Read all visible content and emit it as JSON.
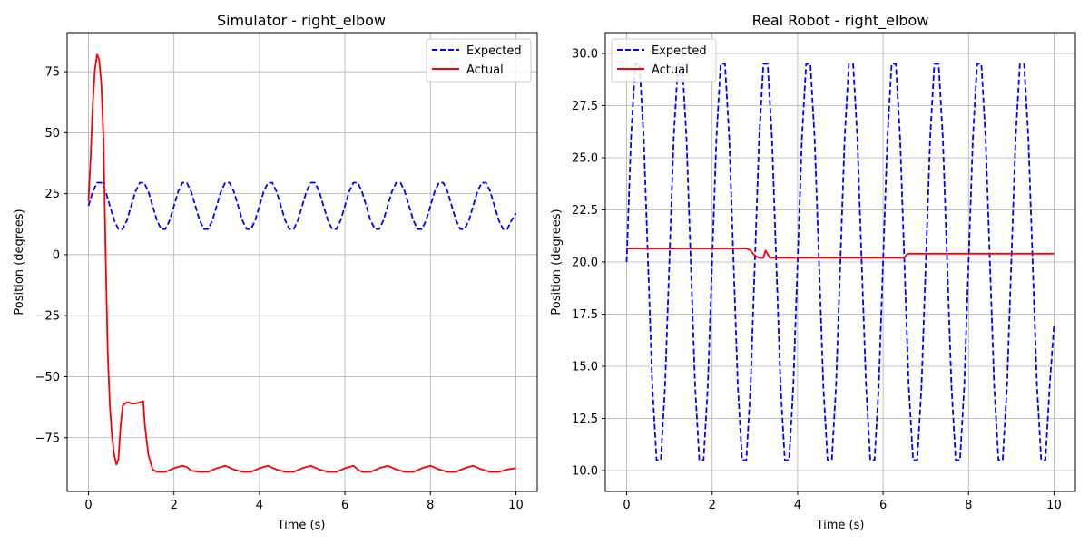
{
  "chart_data": [
    {
      "type": "line",
      "title": "Simulator - right_elbow",
      "xlabel": "Time (s)",
      "ylabel": "Position (degrees)",
      "xlim": [
        -0.5,
        10.5
      ],
      "ylim": [
        -97,
        91
      ],
      "xticks": [
        0,
        2,
        4,
        6,
        8,
        10
      ],
      "yticks": [
        -75,
        -50,
        -25,
        0,
        25,
        50,
        75
      ],
      "xtick_labels": [
        "0",
        "2",
        "4",
        "6",
        "8",
        "10"
      ],
      "ytick_labels": [
        "−75",
        "−50",
        "−25",
        "0",
        "25",
        "50",
        "75"
      ],
      "grid": true,
      "legend_position": "top-right",
      "series": [
        {
          "name": "Expected",
          "color": "#0000ff",
          "style": "dashed",
          "x": [
            0,
            0.1,
            0.2,
            0.3,
            0.4,
            0.5,
            0.6,
            0.7,
            0.8,
            0.9,
            1.0,
            1.1,
            1.2,
            1.3,
            1.4,
            1.5,
            1.6,
            1.7,
            1.8,
            1.9,
            2.0,
            2.1,
            2.2,
            2.3,
            2.4,
            2.5,
            2.6,
            2.7,
            2.8,
            2.9,
            3.0,
            3.1,
            3.2,
            3.3,
            3.4,
            3.5,
            3.6,
            3.7,
            3.8,
            3.9,
            4.0,
            4.1,
            4.2,
            4.3,
            4.4,
            4.5,
            4.6,
            4.7,
            4.8,
            4.9,
            5.0,
            5.1,
            5.2,
            5.3,
            5.4,
            5.5,
            5.6,
            5.7,
            5.8,
            5.9,
            6.0,
            6.1,
            6.2,
            6.3,
            6.4,
            6.5,
            6.6,
            6.7,
            6.8,
            6.9,
            7.0,
            7.1,
            7.2,
            7.3,
            7.4,
            7.5,
            7.6,
            7.7,
            7.8,
            7.9,
            8.0,
            8.1,
            8.2,
            8.3,
            8.4,
            8.5,
            8.6,
            8.7,
            8.8,
            8.9,
            9.0,
            9.1,
            9.2,
            9.3,
            9.4,
            9.5,
            9.6,
            9.7,
            9.8,
            9.9,
            10.0
          ],
          "y": [
            20,
            25.9,
            29.5,
            29.5,
            25.9,
            20,
            14.1,
            10.5,
            10.5,
            14.1,
            20,
            25.9,
            29.5,
            29.5,
            25.9,
            20,
            14.1,
            10.5,
            10.5,
            14.1,
            20,
            25.9,
            29.5,
            29.5,
            25.9,
            20,
            14.1,
            10.5,
            10.5,
            14.1,
            20,
            25.9,
            29.5,
            29.5,
            25.9,
            20,
            14.1,
            10.5,
            10.5,
            14.1,
            20,
            25.9,
            29.5,
            29.5,
            25.9,
            20,
            14.1,
            10.5,
            10.5,
            14.1,
            20,
            25.9,
            29.5,
            29.5,
            25.9,
            20,
            14.1,
            10.5,
            10.5,
            14.1,
            20,
            25.9,
            29.5,
            29.5,
            25.9,
            20,
            14.1,
            10.5,
            10.5,
            14.1,
            20,
            25.9,
            29.5,
            29.5,
            25.9,
            20,
            14.1,
            10.5,
            10.5,
            14.1,
            20,
            25.9,
            29.5,
            29.5,
            25.9,
            20,
            14.1,
            10.5,
            10.5,
            14.1,
            20,
            25.9,
            29.5,
            29.5,
            25.9,
            20,
            14.1,
            10.5,
            10.5,
            14.1,
            17
          ]
        },
        {
          "name": "Actual",
          "color": "#ff0000",
          "style": "solid",
          "x": [
            0,
            0.05,
            0.1,
            0.15,
            0.2,
            0.25,
            0.3,
            0.35,
            0.4,
            0.45,
            0.5,
            0.55,
            0.6,
            0.65,
            0.7,
            0.75,
            0.8,
            0.85,
            0.9,
            0.95,
            1.0,
            1.1,
            1.2,
            1.28,
            1.32,
            1.4,
            1.5,
            1.6,
            1.7,
            1.8,
            2.0,
            2.2,
            2.3,
            2.4,
            2.6,
            2.8,
            3.0,
            3.2,
            3.4,
            3.6,
            3.8,
            4.0,
            4.2,
            4.4,
            4.6,
            4.8,
            5.0,
            5.2,
            5.4,
            5.6,
            5.8,
            6.0,
            6.2,
            6.3,
            6.4,
            6.5,
            6.6,
            6.8,
            7.0,
            7.2,
            7.4,
            7.6,
            7.8,
            8.0,
            8.2,
            8.4,
            8.6,
            8.8,
            9.0,
            9.2,
            9.4,
            9.6,
            9.8,
            10.0
          ],
          "y": [
            22,
            40,
            62,
            76,
            82,
            80,
            70,
            48,
            0,
            -40,
            -62,
            -74,
            -82,
            -86,
            -84,
            -70,
            -62,
            -61,
            -60.5,
            -60.5,
            -61,
            -61,
            -60.5,
            -60,
            -70,
            -82,
            -88,
            -89,
            -89,
            -89,
            -87.5,
            -86.5,
            -87,
            -88.5,
            -89,
            -89,
            -87.5,
            -86.5,
            -88,
            -89,
            -89,
            -87.5,
            -86.5,
            -88,
            -89,
            -89,
            -87.5,
            -86.5,
            -88,
            -89,
            -89,
            -87.5,
            -86.5,
            -88,
            -89,
            -89,
            -89,
            -87.5,
            -86.5,
            -88,
            -89,
            -89,
            -87.5,
            -86.5,
            -88,
            -89,
            -89,
            -87.5,
            -86.5,
            -88,
            -89,
            -89,
            -88,
            -87.5
          ]
        }
      ]
    },
    {
      "type": "line",
      "title": "Real Robot - right_elbow",
      "xlabel": "Time (s)",
      "ylabel": "Position (degrees)",
      "xlim": [
        -0.5,
        10.5
      ],
      "ylim": [
        9,
        31
      ],
      "xticks": [
        0,
        2,
        4,
        6,
        8,
        10
      ],
      "yticks": [
        10.0,
        12.5,
        15.0,
        17.5,
        20.0,
        22.5,
        25.0,
        27.5,
        30.0
      ],
      "xtick_labels": [
        "0",
        "2",
        "4",
        "6",
        "8",
        "10"
      ],
      "ytick_labels": [
        "10.0",
        "12.5",
        "15.0",
        "17.5",
        "20.0",
        "22.5",
        "25.0",
        "27.5",
        "30.0"
      ],
      "grid": true,
      "legend_position": "top-left",
      "series": [
        {
          "name": "Expected",
          "color": "#0000ff",
          "style": "dashed",
          "x": [
            0,
            0.1,
            0.2,
            0.3,
            0.4,
            0.5,
            0.6,
            0.7,
            0.8,
            0.9,
            1.0,
            1.1,
            1.2,
            1.3,
            1.4,
            1.5,
            1.6,
            1.7,
            1.8,
            1.9,
            2.0,
            2.1,
            2.2,
            2.3,
            2.4,
            2.5,
            2.6,
            2.7,
            2.8,
            2.9,
            3.0,
            3.1,
            3.2,
            3.3,
            3.4,
            3.5,
            3.6,
            3.7,
            3.8,
            3.9,
            4.0,
            4.1,
            4.2,
            4.3,
            4.4,
            4.5,
            4.6,
            4.7,
            4.8,
            4.9,
            5.0,
            5.1,
            5.2,
            5.3,
            5.4,
            5.5,
            5.6,
            5.7,
            5.8,
            5.9,
            6.0,
            6.1,
            6.2,
            6.3,
            6.4,
            6.5,
            6.6,
            6.7,
            6.8,
            6.9,
            7.0,
            7.1,
            7.2,
            7.3,
            7.4,
            7.5,
            7.6,
            7.7,
            7.8,
            7.9,
            8.0,
            8.1,
            8.2,
            8.3,
            8.4,
            8.5,
            8.6,
            8.7,
            8.8,
            8.9,
            9.0,
            9.1,
            9.2,
            9.3,
            9.4,
            9.5,
            9.6,
            9.7,
            9.8,
            9.9,
            10.0
          ],
          "y": [
            20,
            25.9,
            29.5,
            29.5,
            25.9,
            20,
            14.1,
            10.5,
            10.5,
            14.1,
            20,
            25.9,
            29.5,
            29.5,
            25.9,
            20,
            14.1,
            10.5,
            10.5,
            14.1,
            20,
            25.9,
            29.5,
            29.5,
            25.9,
            20,
            14.1,
            10.5,
            10.5,
            14.1,
            20,
            25.9,
            29.5,
            29.5,
            25.9,
            20,
            14.1,
            10.5,
            10.5,
            14.1,
            20,
            25.9,
            29.5,
            29.5,
            25.9,
            20,
            14.1,
            10.5,
            10.5,
            14.1,
            20,
            25.9,
            29.5,
            29.5,
            25.9,
            20,
            14.1,
            10.5,
            10.5,
            14.1,
            20,
            25.9,
            29.5,
            29.5,
            25.9,
            20,
            14.1,
            10.5,
            10.5,
            14.1,
            20,
            25.9,
            29.5,
            29.5,
            25.9,
            20,
            14.1,
            10.5,
            10.5,
            14.1,
            20,
            25.9,
            29.5,
            29.5,
            25.9,
            20,
            14.1,
            10.5,
            10.5,
            14.1,
            20,
            25.9,
            29.5,
            29.5,
            25.9,
            20,
            14.1,
            10.5,
            10.5,
            14.1,
            17
          ]
        },
        {
          "name": "Actual",
          "color": "#ff0000",
          "style": "solid",
          "x": [
            0,
            1.0,
            2.0,
            2.8,
            2.9,
            3.0,
            3.1,
            3.2,
            3.25,
            3.35,
            3.5,
            4.0,
            5.0,
            6.0,
            6.5,
            6.55,
            6.6,
            7.0,
            8.0,
            9.0,
            10.0
          ],
          "y": [
            20.65,
            20.65,
            20.65,
            20.65,
            20.55,
            20.3,
            20.2,
            20.2,
            20.55,
            20.2,
            20.2,
            20.2,
            20.2,
            20.2,
            20.2,
            20.35,
            20.4,
            20.4,
            20.4,
            20.4,
            20.4
          ]
        }
      ]
    }
  ]
}
